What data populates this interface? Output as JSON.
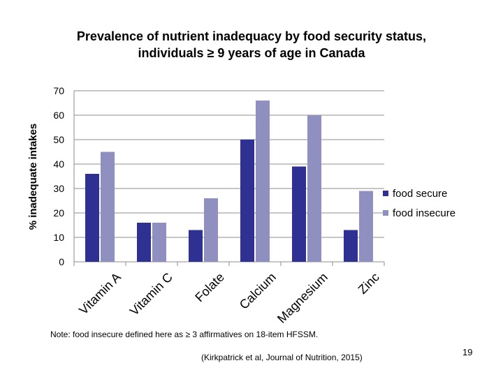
{
  "slide": {
    "title_line1": "Prevalence of nutrient inadequacy by food security status,",
    "title_line2": "individuals ≥ 9 years of age in Canada",
    "note": "Note: food insecure defined here as ≥ 3 affirmatives on 18-item HFSSM.",
    "citation": "(Kirkpatrick et al, Journal of Nutrition, 2015)",
    "page_number": "19"
  },
  "chart_data": {
    "type": "bar",
    "title": "Prevalence of nutrient inadequacy by food security status, individuals ≥ 9 years of age in Canada",
    "xlabel": "",
    "ylabel": "% inadequate intakes",
    "ylim": [
      0,
      70
    ],
    "yticks": [
      0,
      10,
      20,
      30,
      40,
      50,
      60,
      70
    ],
    "grid": true,
    "legend_position": "right",
    "categories": [
      "Vitamin A",
      "Vitamin C",
      "Folate",
      "Calcium",
      "Magnesium",
      "Zinc"
    ],
    "series": [
      {
        "name": "food secure",
        "color": "#2e3191",
        "values": [
          36,
          16,
          13,
          50,
          39,
          13
        ]
      },
      {
        "name": "food insecure",
        "color": "#9090c0",
        "values": [
          45,
          16,
          26,
          66,
          60,
          29
        ]
      }
    ]
  }
}
